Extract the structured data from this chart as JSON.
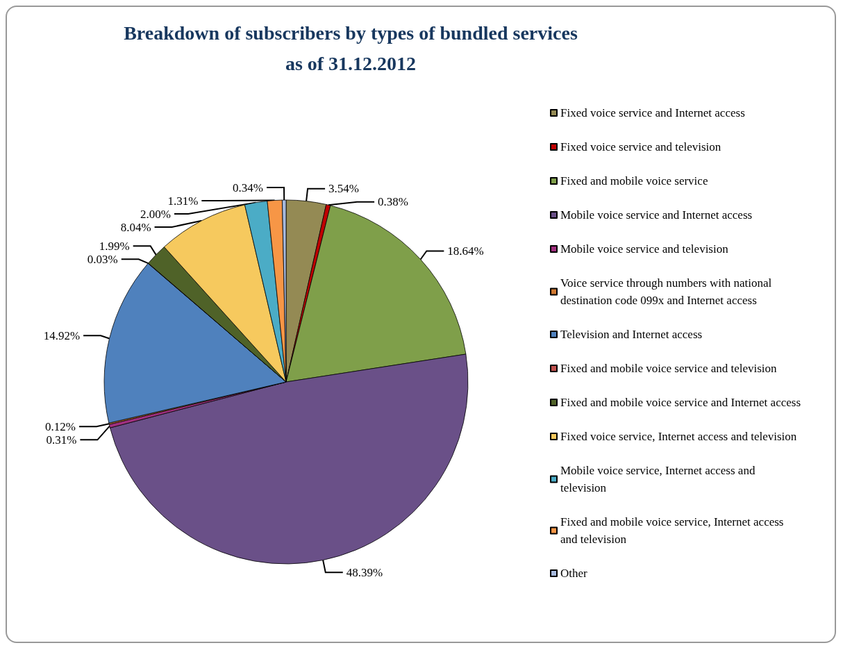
{
  "chart_data": {
    "type": "pie",
    "title": "Breakdown of subscribers by types of bundled services\nas of 31.12.2012",
    "categories": [
      "Fixed voice service and Internet access",
      "Fixed voice service and television",
      "Fixed and mobile voice service",
      "Mobile voice service and Internet access",
      "Mobile voice service and television",
      "Voice service through numbers with national destination code 099x and Internet access",
      "Television and Internet access",
      "Fixed and mobile voice service and television",
      "Fixed and mobile voice service and Internet access",
      "Fixed voice service, Internet access and television",
      "Mobile voice service, Internet access and television",
      "Fixed and mobile voice service, Internet access and television",
      "Other"
    ],
    "values": [
      3.54,
      0.38,
      18.64,
      48.39,
      0.31,
      0.12,
      14.92,
      0.03,
      1.99,
      8.04,
      2.0,
      1.31,
      0.34
    ],
    "value_labels": [
      "3.54%",
      "0.38%",
      "18.64%",
      "48.39%",
      "0.31%",
      "0.12%",
      "14.92%",
      "0.03%",
      "1.99%",
      "8.04%",
      "2.00%",
      "1.31%",
      "0.34%"
    ],
    "colors": [
      "#948a54",
      "#c00000",
      "#7f9f4a",
      "#6a5088",
      "#a0307f",
      "#d07830",
      "#4f81bd",
      "#c0504d",
      "#4f6228",
      "#f6c95e",
      "#4bacc6",
      "#f79646",
      "#a6b9dc"
    ],
    "legend": "right"
  }
}
